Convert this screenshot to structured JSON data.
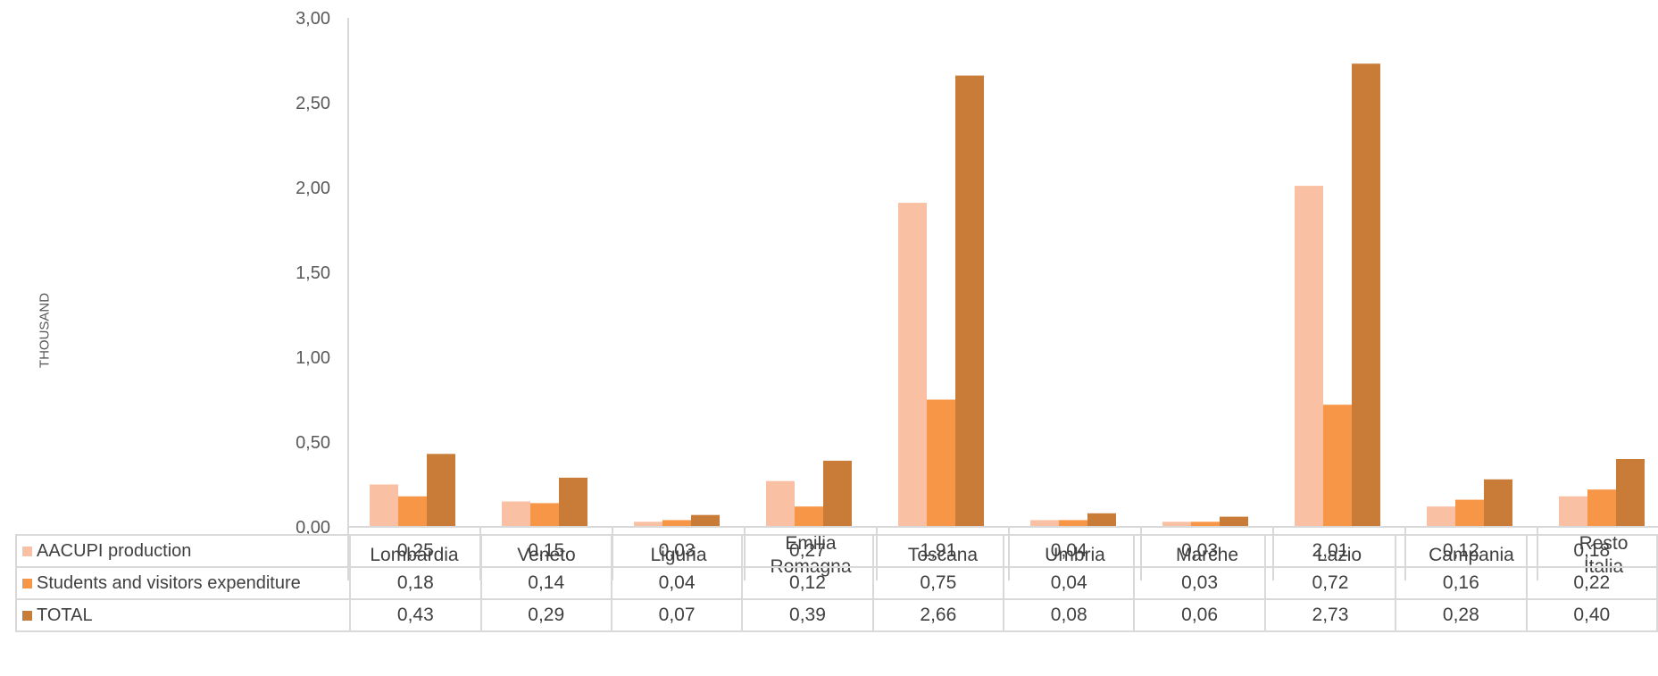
{
  "chart_data": {
    "type": "bar",
    "ylabel": "THOUSAND",
    "ylim": [
      0,
      3
    ],
    "yticks": [
      "0,00",
      "0,50",
      "1,00",
      "1,50",
      "2,00",
      "2,50",
      "3,00"
    ],
    "categories": [
      "Lombardia",
      "Veneto",
      "Liguria",
      "Emilia Romagna",
      "Toscana",
      "Umbria",
      "Marche",
      "Lazio",
      "Campania",
      "Resto Italia"
    ],
    "series": [
      {
        "name": "AACUPI production",
        "color": "#f9c0a4",
        "values": [
          0.25,
          0.15,
          0.03,
          0.27,
          1.91,
          0.04,
          0.03,
          2.01,
          0.12,
          0.18
        ],
        "labels": [
          "0,25",
          "0,15",
          "0,03",
          "0,27",
          "1,91",
          "0,04",
          "0,03",
          "2,01",
          "0,12",
          "0,18"
        ]
      },
      {
        "name": "Students and visitors expenditure",
        "color": "#f79646",
        "values": [
          0.18,
          0.14,
          0.04,
          0.12,
          0.75,
          0.04,
          0.03,
          0.72,
          0.16,
          0.22
        ],
        "labels": [
          "0,18",
          "0,14",
          "0,04",
          "0,12",
          "0,75",
          "0,04",
          "0,03",
          "0,72",
          "0,16",
          "0,22"
        ]
      },
      {
        "name": "TOTAL",
        "color": "#c97b38",
        "values": [
          0.43,
          0.29,
          0.07,
          0.39,
          2.66,
          0.08,
          0.06,
          2.73,
          0.28,
          0.4
        ],
        "labels": [
          "0,43",
          "0,29",
          "0,07",
          "0,39",
          "2,66",
          "0,08",
          "0,06",
          "2,73",
          "0,28",
          "0,40"
        ]
      }
    ],
    "legend": "data-table",
    "grid": false
  }
}
